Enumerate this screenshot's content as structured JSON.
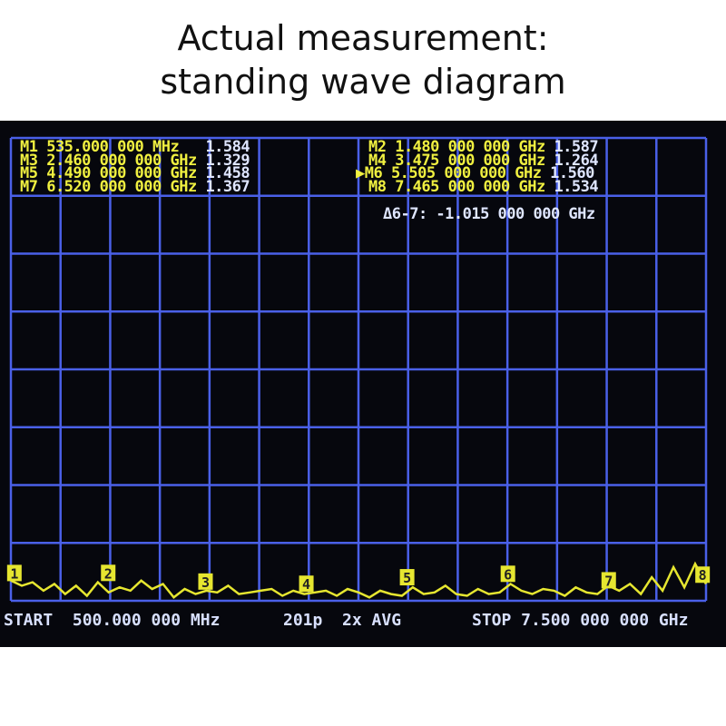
{
  "title_lines": [
    "Actual measurement:",
    "standing wave diagram"
  ],
  "colors": {
    "grid": "#4a60e8",
    "trace": "#e6e630",
    "marker_text": "#f0f040",
    "value_text": "#dfe6ff",
    "background": "#06070d"
  },
  "chart_data": {
    "type": "line",
    "title": "",
    "xlabel": "",
    "ylabel": "",
    "xlim_ghz": [
      0.5,
      7.5
    ],
    "ylim_swr": [
      1.0,
      13.0
    ],
    "grid": true,
    "markers": [
      {
        "id": "M1",
        "label": "1",
        "freq_text": "535.000 000 MHz",
        "freq_ghz": 0.535,
        "value": "1.584",
        "swr": 1.584,
        "active": false
      },
      {
        "id": "M2",
        "label": "2",
        "freq_text": "1.480 000 000 GHz",
        "freq_ghz": 1.48,
        "value": "1.587",
        "swr": 1.587,
        "active": false
      },
      {
        "id": "M3",
        "label": "3",
        "freq_text": "2.460 000 000 GHz",
        "freq_ghz": 2.46,
        "value": "1.329",
        "swr": 1.329,
        "active": false
      },
      {
        "id": "M4",
        "label": "4",
        "freq_text": "3.475 000 000 GHz",
        "freq_ghz": 3.475,
        "value": "1.264",
        "swr": 1.264,
        "active": false
      },
      {
        "id": "M5",
        "label": "5",
        "freq_text": "4.490 000 000 GHz",
        "freq_ghz": 4.49,
        "value": "1.458",
        "swr": 1.458,
        "active": false
      },
      {
        "id": "M6",
        "label": "6",
        "freq_text": "5.505 000 000 GHz",
        "freq_ghz": 5.505,
        "value": "1.560",
        "swr": 1.56,
        "active": true
      },
      {
        "id": "M7",
        "label": "7",
        "freq_text": "6.520 000 000 GHz",
        "freq_ghz": 6.52,
        "value": "1.367",
        "swr": 1.367,
        "active": false
      },
      {
        "id": "M8",
        "label": "8",
        "freq_text": "7.465 000 000 GHz",
        "freq_ghz": 7.465,
        "value": "1.534",
        "swr": 1.534,
        "active": false
      }
    ],
    "delta": "Δ6-7: -1.015 000 000 GHz",
    "trace_swr": [
      1.6,
      1.45,
      1.55,
      1.3,
      1.5,
      1.2,
      1.45,
      1.15,
      1.55,
      1.25,
      1.4,
      1.3,
      1.6,
      1.35,
      1.5,
      1.1,
      1.35,
      1.2,
      1.3,
      1.25,
      1.45,
      1.2,
      1.25,
      1.3,
      1.35,
      1.15,
      1.3,
      1.2,
      1.25,
      1.3,
      1.15,
      1.35,
      1.25,
      1.1,
      1.3,
      1.2,
      1.15,
      1.4,
      1.2,
      1.25,
      1.45,
      1.2,
      1.15,
      1.35,
      1.2,
      1.25,
      1.5,
      1.3,
      1.2,
      1.35,
      1.3,
      1.15,
      1.4,
      1.25,
      1.2,
      1.45,
      1.3,
      1.5,
      1.2,
      1.7,
      1.3,
      2.0,
      1.4,
      2.1,
      1.5
    ]
  },
  "footer": {
    "start": "START  500.000 000 MHz",
    "points": "201p  2x AVG",
    "stop": "STOP 7.500 000 000 GHz"
  }
}
